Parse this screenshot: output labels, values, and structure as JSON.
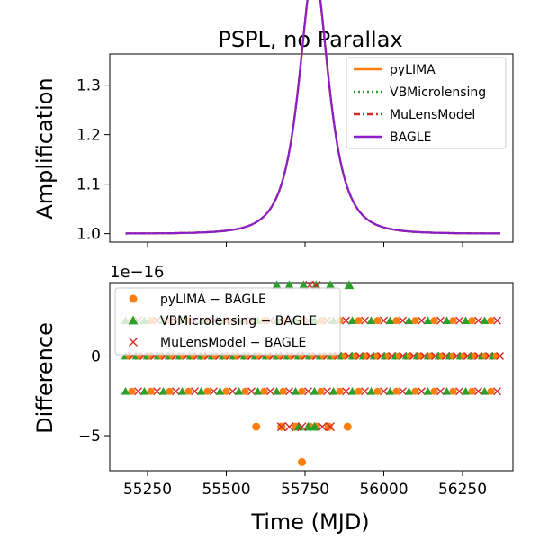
{
  "chart_data": [
    {
      "type": "line",
      "title": "PSPL, no Parallax",
      "xlabel": "",
      "ylabel": "Amplification",
      "xlim": [
        55130,
        56410
      ],
      "ylim": [
        0.983,
        1.363
      ],
      "xticks": [
        55250,
        55500,
        55750,
        56000,
        56250
      ],
      "xtick_labels_visible": false,
      "yticks": [
        1.0,
        1.1,
        1.2,
        1.3
      ],
      "ytick_labels": [
        "1.0",
        "1.1",
        "1.2",
        "1.3"
      ],
      "legend_position": "top-right",
      "model": {
        "t0": 55778,
        "u0": 0.8,
        "tE": 70,
        "t_start": 55180,
        "t_end": 56370
      },
      "series": [
        {
          "name": "pyLIMA",
          "color": "#ff7f0e",
          "style": "solid"
        },
        {
          "name": "VBMicrolensing",
          "color": "#2ca02c",
          "style": "dotted"
        },
        {
          "name": "MuLensModel",
          "color": "#d62728",
          "style": "dashdot"
        },
        {
          "name": "BAGLE",
          "color": "#8a1ec8",
          "style": "solid"
        }
      ]
    },
    {
      "type": "scatter",
      "title": "",
      "xlabel": "Time (MJD)",
      "ylabel": "Difference",
      "scale_label": "1e−16",
      "xlim": [
        55130,
        56410
      ],
      "ylim": [
        -7.2,
        4.6
      ],
      "xticks": [
        55250,
        55500,
        55750,
        56000,
        56250
      ],
      "xtick_labels": [
        "55250",
        "55500",
        "55750",
        "56000",
        "56250"
      ],
      "yticks": [
        -5,
        0
      ],
      "ytick_labels": [
        "−5",
        "0"
      ],
      "legend_position": "top-left",
      "bands": {
        "x_start": 55180,
        "x_end": 56370,
        "levels": [
          2.22,
          0,
          -2.22
        ]
      },
      "series": [
        {
          "name": "pyLIMA − BAGLE",
          "marker": "circle",
          "color": "#ff7f0e",
          "points": [
            [
              55595,
              -4.44
            ],
            [
              55675,
              -4.44
            ],
            [
              55720,
              -4.44
            ],
            [
              55740,
              -6.66
            ],
            [
              55765,
              -4.44
            ],
            [
              55785,
              -4.44
            ],
            [
              55825,
              -4.44
            ],
            [
              55885,
              -4.44
            ]
          ]
        },
        {
          "name": "VBMicrolensing − BAGLE",
          "marker": "triangle",
          "color": "#2ca02c",
          "points": [
            [
              55660,
              4.44
            ],
            [
              55700,
              4.44
            ],
            [
              55745,
              4.44
            ],
            [
              55785,
              4.44
            ],
            [
              55830,
              4.44
            ],
            [
              55890,
              4.44
            ],
            [
              55730,
              -4.44
            ],
            [
              55760,
              -4.44
            ],
            [
              55780,
              -4.44
            ]
          ]
        },
        {
          "name": "MuLensModel − BAGLE",
          "marker": "x",
          "color": "#d62728",
          "points": [
            [
              55675,
              -4.44
            ],
            [
              55700,
              -4.44
            ],
            [
              55740,
              -4.44
            ],
            [
              55805,
              -4.44
            ],
            [
              55830,
              -4.44
            ],
            [
              55765,
              4.44
            ],
            [
              55785,
              4.44
            ]
          ]
        }
      ]
    }
  ]
}
